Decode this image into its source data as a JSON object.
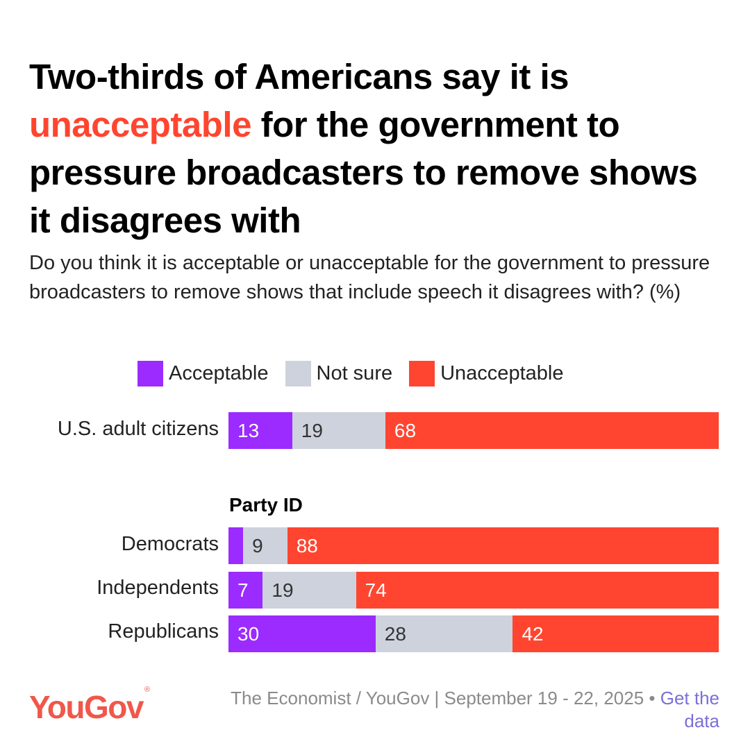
{
  "title": {
    "before": "Two-thirds of Americans say it is ",
    "highlight": "unacceptable",
    "after": " for the government to pressure broadcasters to remove shows it disagrees with"
  },
  "subtitle": "Do you think it is acceptable or unacceptable for the government to pressure broadcasters to remove shows that include speech it disagrees with? (%)",
  "colors": {
    "acceptable": "#9b2bff",
    "not_sure": "#cdd2dc",
    "unacceptable": "#ff4530",
    "highlight": "#ff4530",
    "logo": "#f0574a",
    "link": "#7b6fd8"
  },
  "footer": {
    "logo": "YouGov",
    "logo_mark": "®",
    "source": "The Economist / YouGov | September 19 - 22, 2025 • ",
    "link": "Get the data"
  },
  "chart_data": {
    "type": "bar",
    "orientation": "horizontal-stacked-100",
    "title": "Two-thirds of Americans say it is unacceptable for the government to pressure broadcasters to remove shows it disagrees with",
    "subtitle": "Do you think it is acceptable or unacceptable for the government to pressure broadcasters to remove shows that include speech it disagrees with? (%)",
    "legend": [
      "Acceptable",
      "Not sure",
      "Unacceptable"
    ],
    "legend_position": "top",
    "xlim": [
      0,
      100
    ],
    "grid": false,
    "categories": [
      "U.S. adult citizens",
      "Democrats",
      "Independents",
      "Republicans"
    ],
    "groups": [
      {
        "title": "",
        "categories": [
          "U.S. adult citizens"
        ]
      },
      {
        "title": "Party ID",
        "categories": [
          "Democrats",
          "Independents",
          "Republicans"
        ]
      }
    ],
    "series": [
      {
        "name": "Acceptable",
        "values": [
          13,
          3,
          7,
          30
        ],
        "labels": [
          "13",
          "",
          "7",
          "30"
        ]
      },
      {
        "name": "Not sure",
        "values": [
          19,
          9,
          19,
          28
        ],
        "labels": [
          "19",
          "9",
          "19",
          "28"
        ]
      },
      {
        "name": "Unacceptable",
        "values": [
          68,
          88,
          74,
          42
        ],
        "labels": [
          "68",
          "88",
          "74",
          "42"
        ]
      }
    ]
  }
}
